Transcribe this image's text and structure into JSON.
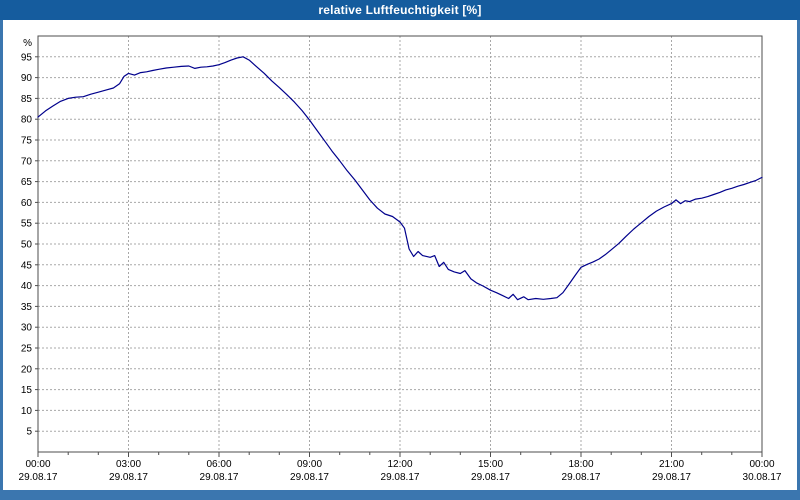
{
  "window": {
    "title": "relative Luftfeuchtigkeit [%]"
  },
  "colors": {
    "titlebar": "#155c9e",
    "titlebar_text": "#ffffff",
    "frame": "#3b76af",
    "plot_bg": "#ffffff",
    "plot_border": "#4d4d4d",
    "grid": "#a8a8a8",
    "text": "#000000",
    "line": "#00008c"
  },
  "chart_data": {
    "type": "line",
    "title": "relative Luftfeuchtigkeit [%]",
    "ylabel": "%",
    "xlabel": "",
    "ylim": [
      0,
      100
    ],
    "ytick_min": 5,
    "ytick_max": 95,
    "ytick_step": 5,
    "xlim_hours": [
      0,
      24
    ],
    "grid": "dashed",
    "legend_position": "none",
    "xticks": [
      {
        "hour": 0,
        "time": "00:00",
        "date": "29.08.17"
      },
      {
        "hour": 3,
        "time": "03:00",
        "date": "29.08.17"
      },
      {
        "hour": 6,
        "time": "06:00",
        "date": "29.08.17"
      },
      {
        "hour": 9,
        "time": "09:00",
        "date": "29.08.17"
      },
      {
        "hour": 12,
        "time": "12:00",
        "date": "29.08.17"
      },
      {
        "hour": 15,
        "time": "15:00",
        "date": "29.08.17"
      },
      {
        "hour": 18,
        "time": "18:00",
        "date": "29.08.17"
      },
      {
        "hour": 21,
        "time": "21:00",
        "date": "29.08.17"
      },
      {
        "hour": 24,
        "time": "00:00",
        "date": "30.08.17"
      }
    ],
    "series": [
      {
        "name": "relative Luftfeuchtigkeit",
        "unit": "%",
        "color": "#00008c",
        "points": [
          [
            0,
            80.5
          ],
          [
            0.25,
            82
          ],
          [
            0.5,
            83.2
          ],
          [
            0.75,
            84.3
          ],
          [
            1,
            85
          ],
          [
            1.25,
            85.3
          ],
          [
            1.5,
            85.4
          ],
          [
            1.75,
            86
          ],
          [
            2,
            86.5
          ],
          [
            2.25,
            87
          ],
          [
            2.5,
            87.5
          ],
          [
            2.7,
            88.5
          ],
          [
            2.85,
            90.3
          ],
          [
            3,
            91
          ],
          [
            3.2,
            90.6
          ],
          [
            3.4,
            91.2
          ],
          [
            3.6,
            91.4
          ],
          [
            3.8,
            91.7
          ],
          [
            4,
            92
          ],
          [
            4.25,
            92.3
          ],
          [
            4.5,
            92.5
          ],
          [
            4.75,
            92.7
          ],
          [
            5,
            92.8
          ],
          [
            5.2,
            92.2
          ],
          [
            5.4,
            92.5
          ],
          [
            5.6,
            92.6
          ],
          [
            5.8,
            92.8
          ],
          [
            6,
            93.1
          ],
          [
            6.2,
            93.6
          ],
          [
            6.4,
            94.2
          ],
          [
            6.6,
            94.7
          ],
          [
            6.8,
            95
          ],
          [
            7,
            94.2
          ],
          [
            7.25,
            92.6
          ],
          [
            7.5,
            91
          ],
          [
            7.75,
            89.2
          ],
          [
            8,
            87.6
          ],
          [
            8.25,
            85.9
          ],
          [
            8.5,
            84.1
          ],
          [
            8.75,
            82.1
          ],
          [
            9,
            79.8
          ],
          [
            9.25,
            77.3
          ],
          [
            9.5,
            74.8
          ],
          [
            9.75,
            72.3
          ],
          [
            10,
            70
          ],
          [
            10.25,
            67.6
          ],
          [
            10.5,
            65.4
          ],
          [
            10.75,
            63
          ],
          [
            11,
            60.6
          ],
          [
            11.25,
            58.6
          ],
          [
            11.5,
            57.2
          ],
          [
            11.75,
            56.6
          ],
          [
            12,
            55.3
          ],
          [
            12.15,
            53.8
          ],
          [
            12.3,
            48.8
          ],
          [
            12.45,
            47
          ],
          [
            12.6,
            48.2
          ],
          [
            12.75,
            47.2
          ],
          [
            13,
            46.8
          ],
          [
            13.15,
            47.2
          ],
          [
            13.3,
            44.6
          ],
          [
            13.45,
            45.6
          ],
          [
            13.6,
            43.9
          ],
          [
            13.8,
            43.3
          ],
          [
            14,
            42.9
          ],
          [
            14.15,
            43.6
          ],
          [
            14.35,
            41.6
          ],
          [
            14.55,
            40.6
          ],
          [
            14.75,
            39.9
          ],
          [
            15,
            38.9
          ],
          [
            15.2,
            38.3
          ],
          [
            15.4,
            37.6
          ],
          [
            15.6,
            36.9
          ],
          [
            15.75,
            37.9
          ],
          [
            15.9,
            36.6
          ],
          [
            16.1,
            37.3
          ],
          [
            16.25,
            36.6
          ],
          [
            16.5,
            36.9
          ],
          [
            16.75,
            36.7
          ],
          [
            17,
            36.9
          ],
          [
            17.2,
            37.1
          ],
          [
            17.4,
            38.3
          ],
          [
            17.6,
            40.3
          ],
          [
            17.8,
            42.4
          ],
          [
            18,
            44.4
          ],
          [
            18.2,
            45.1
          ],
          [
            18.4,
            45.7
          ],
          [
            18.6,
            46.4
          ],
          [
            18.8,
            47.4
          ],
          [
            19,
            48.6
          ],
          [
            19.25,
            50.1
          ],
          [
            19.5,
            51.9
          ],
          [
            19.75,
            53.6
          ],
          [
            20,
            55.1
          ],
          [
            20.25,
            56.6
          ],
          [
            20.5,
            57.9
          ],
          [
            20.75,
            58.9
          ],
          [
            21,
            59.7
          ],
          [
            21.15,
            60.6
          ],
          [
            21.3,
            59.7
          ],
          [
            21.45,
            60.4
          ],
          [
            21.6,
            60.2
          ],
          [
            21.8,
            60.8
          ],
          [
            22,
            61
          ],
          [
            22.2,
            61.4
          ],
          [
            22.4,
            61.9
          ],
          [
            22.6,
            62.4
          ],
          [
            22.8,
            63
          ],
          [
            23,
            63.4
          ],
          [
            23.2,
            63.9
          ],
          [
            23.4,
            64.3
          ],
          [
            23.6,
            64.8
          ],
          [
            23.8,
            65.3
          ],
          [
            24,
            66
          ]
        ]
      }
    ]
  }
}
